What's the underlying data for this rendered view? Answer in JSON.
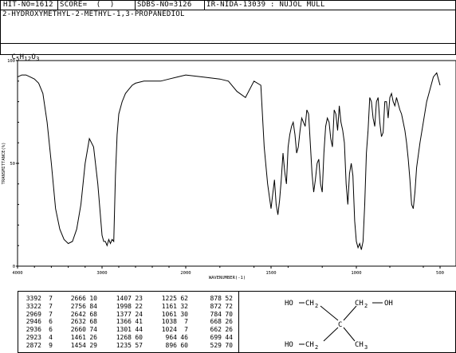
{
  "header": {
    "hit_no": "HIT-NO=1612",
    "score": "SCORE=  (  )",
    "sdbs_no": "SDBS-NO=3126",
    "ir_info": "IR-NIDA-13039 : NUJOL MULL",
    "compound_name": "2-HYDROXYMETHYL-2-METHYL-1,3-PROPANEDIOL",
    "formula_parts": [
      "C",
      "5",
      "H",
      "12",
      "O",
      "3"
    ]
  },
  "chart_data": {
    "type": "line",
    "xlabel": "WAVENUMBER(-1)",
    "ylabel": "TRANSMITTANCE(%)",
    "xlim": [
      4000,
      500
    ],
    "ylim": [
      0,
      100
    ],
    "x_ticks": [
      "4000",
      "3000",
      "2000",
      "1500",
      "1000",
      "500"
    ],
    "y_ticks": [
      "0",
      "50",
      "100"
    ],
    "x": [
      4000,
      3950,
      3900,
      3850,
      3800,
      3750,
      3700,
      3650,
      3600,
      3550,
      3500,
      3450,
      3400,
      3350,
      3300,
      3250,
      3200,
      3150,
      3100,
      3050,
      3000,
      2980,
      2960,
      2940,
      2920,
      2900,
      2880,
      2860,
      2840,
      2820,
      2800,
      2760,
      2720,
      2680,
      2640,
      2600,
      2500,
      2400,
      2300,
      2200,
      2100,
      2000,
      1900,
      1800,
      1750,
      1700,
      1650,
      1600,
      1560,
      1540,
      1520,
      1500,
      1490,
      1480,
      1470,
      1460,
      1450,
      1440,
      1430,
      1420,
      1410,
      1400,
      1390,
      1380,
      1370,
      1360,
      1350,
      1340,
      1330,
      1320,
      1300,
      1290,
      1280,
      1270,
      1260,
      1250,
      1240,
      1230,
      1220,
      1210,
      1200,
      1190,
      1180,
      1170,
      1160,
      1150,
      1140,
      1130,
      1120,
      1110,
      1100,
      1090,
      1080,
      1070,
      1060,
      1050,
      1040,
      1030,
      1020,
      1010,
      1000,
      990,
      980,
      970,
      960,
      950,
      940,
      930,
      920,
      910,
      900,
      890,
      880,
      870,
      860,
      850,
      840,
      830,
      820,
      810,
      800,
      790,
      780,
      770,
      760,
      750,
      740,
      730,
      720,
      710,
      700,
      690,
      680,
      670,
      660,
      650,
      640,
      620,
      600,
      580,
      560,
      540,
      520,
      500
    ],
    "y": [
      92,
      93,
      93,
      92,
      91,
      89,
      84,
      70,
      50,
      28,
      18,
      13,
      11,
      12,
      18,
      30,
      50,
      62,
      58,
      40,
      15,
      12,
      12,
      10,
      13,
      11,
      13,
      12,
      44,
      64,
      74,
      80,
      84,
      86,
      88,
      89,
      90,
      90,
      90,
      91,
      92,
      93,
      92,
      91,
      90,
      85,
      82,
      90,
      88,
      58,
      40,
      28,
      35,
      42,
      30,
      25,
      32,
      42,
      55,
      46,
      40,
      58,
      64,
      68,
      70,
      64,
      55,
      58,
      66,
      72,
      68,
      76,
      74,
      60,
      45,
      36,
      42,
      50,
      52,
      40,
      36,
      55,
      68,
      72,
      70,
      62,
      58,
      76,
      74,
      66,
      78,
      70,
      66,
      60,
      40,
      30,
      45,
      50,
      44,
      22,
      12,
      9,
      11,
      8,
      12,
      30,
      55,
      66,
      82,
      80,
      72,
      68,
      80,
      82,
      70,
      63,
      65,
      80,
      80,
      72,
      82,
      84,
      80,
      78,
      82,
      79,
      76,
      74,
      70,
      66,
      60,
      52,
      42,
      30,
      28,
      36,
      48,
      60,
      70,
      80,
      86,
      92,
      94,
      88
    ]
  },
  "peak_table": {
    "columns": [
      [
        [
          "3392",
          "7"
        ],
        [
          "3322",
          "7"
        ],
        [
          "2969",
          "7"
        ],
        [
          "2946",
          "6"
        ],
        [
          "2936",
          "6"
        ],
        [
          "2923",
          "4"
        ],
        [
          "2872",
          "9"
        ]
      ],
      [
        [
          "2666",
          "10"
        ],
        [
          "2756",
          "84"
        ],
        [
          "2642",
          "68"
        ],
        [
          "2632",
          "68"
        ],
        [
          "2660",
          "74"
        ],
        [
          "1461",
          "26"
        ],
        [
          "1454",
          "29"
        ]
      ],
      [
        [
          "1407",
          "23"
        ],
        [
          "1998",
          "22"
        ],
        [
          "1377",
          "24"
        ],
        [
          "1366",
          "41"
        ],
        [
          "1301",
          "44"
        ],
        [
          "1268",
          "60"
        ],
        [
          "1235",
          "57"
        ]
      ],
      [
        [
          "1225",
          "62"
        ],
        [
          "1161",
          "32"
        ],
        [
          "1061",
          "30"
        ],
        [
          "1038",
          "7"
        ],
        [
          "1024",
          "7"
        ],
        [
          "964",
          "46"
        ],
        [
          "896",
          "60"
        ]
      ],
      [
        [
          "878",
          "52"
        ],
        [
          "872",
          "72"
        ],
        [
          "784",
          "70"
        ],
        [
          "668",
          "26"
        ],
        [
          "662",
          "26"
        ],
        [
          "699",
          "44"
        ],
        [
          "529",
          "70"
        ]
      ]
    ]
  },
  "structure": {
    "labels": {
      "ho_top": "HO",
      "ch2_top_left": "CH",
      "ch2_top_left_sub": "2",
      "ch2_top_right": "CH",
      "ch2_top_right_sub": "2",
      "oh_top_right": "OH",
      "center_c": "C",
      "ho_bottom": "HO",
      "ch2_bottom": "CH",
      "ch2_bottom_sub": "2",
      "ch3": "CH",
      "ch3_sub": "3"
    }
  }
}
